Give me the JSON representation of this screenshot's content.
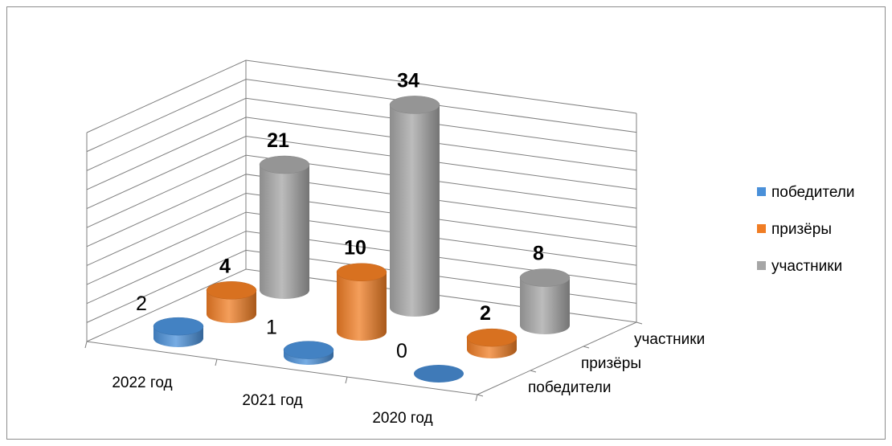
{
  "chart_data": {
    "type": "bar",
    "title": "",
    "categories": [
      "2022 год",
      "2021 год",
      "2020 год"
    ],
    "series": [
      {
        "name": "победители",
        "values": [
          2,
          1,
          0
        ],
        "color": "#4A90D9"
      },
      {
        "name": "призёры",
        "values": [
          4,
          10,
          2
        ],
        "color": "#F07D24"
      },
      {
        "name": "участники",
        "values": [
          21,
          34,
          8
        ],
        "color": "#A6A6A6"
      }
    ],
    "depth_labels": [
      "участники",
      "призёры",
      "победители"
    ],
    "legend": {
      "position": "right",
      "items": [
        "победители",
        "призёры",
        "участники"
      ]
    },
    "grid": true,
    "style": "3D cylinder"
  }
}
